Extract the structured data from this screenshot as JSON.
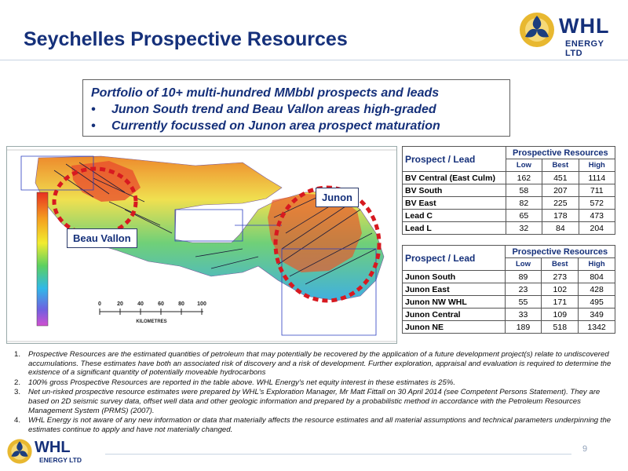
{
  "header": {
    "title": "Seychelles Prospective Resources",
    "logo": {
      "name": "WHL",
      "sub": "ENERGY LTD",
      "icon": "whl-logo-icon"
    }
  },
  "summary": {
    "lines": [
      {
        "bullet": "",
        "text": "Portfolio of 10+ multi-hundred MMbbl prospects and leads"
      },
      {
        "bullet": "•",
        "text": "Junon South trend and Beau Vallon areas high-graded"
      },
      {
        "bullet": "•",
        "text": "Currently focussed on Junon area prospect maturation"
      }
    ]
  },
  "map": {
    "labels": {
      "beau_vallon": "Beau Vallon",
      "junon": "Junon"
    },
    "scale_ticks": [
      "0",
      "20",
      "40",
      "60",
      "80",
      "100"
    ],
    "scale_unit": "KILOMETRES",
    "colors": {
      "highlight_ring": "#d71920"
    }
  },
  "tables": [
    {
      "header": {
        "name": "Prospect / Lead",
        "group": "Prospective Resources",
        "low": "Low",
        "best": "Best",
        "high": "High"
      },
      "rows": [
        {
          "name": "BV Central (East Culm)",
          "low": "162",
          "best": "451",
          "high": "1114"
        },
        {
          "name": "BV South",
          "low": "58",
          "best": "207",
          "high": "711"
        },
        {
          "name": "BV East",
          "low": "82",
          "best": "225",
          "high": "572"
        },
        {
          "name": "Lead C",
          "low": "65",
          "best": "178",
          "high": "473"
        },
        {
          "name": "Lead L",
          "low": "32",
          "best": "84",
          "high": "204"
        }
      ]
    },
    {
      "header": {
        "name": "Prospect / Lead",
        "group": "Prospective Resources",
        "low": "Low",
        "best": "Best",
        "high": "High"
      },
      "rows": [
        {
          "name": "Junon South",
          "low": "89",
          "best": "273",
          "high": "804"
        },
        {
          "name": "Junon East",
          "low": "23",
          "best": "102",
          "high": "428"
        },
        {
          "name": "Junon NW WHL",
          "low": "55",
          "best": "171",
          "high": "495"
        },
        {
          "name": "Junon Central",
          "low": "33",
          "best": "109",
          "high": "349"
        },
        {
          "name": "Junon NE",
          "low": "189",
          "best": "518",
          "high": "1342"
        }
      ]
    }
  ],
  "notes": [
    {
      "num": "1.",
      "text": "Prospective Resources are the estimated quantities of petroleum that may potentially be recovered by the application of a future development project(s) relate to undiscovered accumulations. These estimates have both an associated risk of discovery and a risk of development. Further exploration, appraisal and evaluation is required to determine the existence of a significant quantity of potentially moveable hydrocarbons"
    },
    {
      "num": "2.",
      "text": "100% gross Prospective Resources are reported in the table above. WHL Energy's net equity interest in these estimates is 25%."
    },
    {
      "num": "3.",
      "text": "Net un-risked prospective resource estimates were prepared by WHL's Exploration Manager, Mr Matt Fittall on 30 April 2014 (see Competent Persons Statement). They are based on 2D seismic survey data, offset well data and other geologic information and prepared by a probabilistic method in accordance with the Petroleum Resources Management System (PRMS) (2007)."
    },
    {
      "num": "4.",
      "text": "WHL Energy is not aware of any new information or data that materially affects the resource estimates and all material assumptions and technical parameters underpinning the estimates continue to apply and have not materially changed."
    }
  ],
  "footer": {
    "logo_name": "WHL",
    "logo_sub": "ENERGY LTD",
    "page_number": "9"
  }
}
